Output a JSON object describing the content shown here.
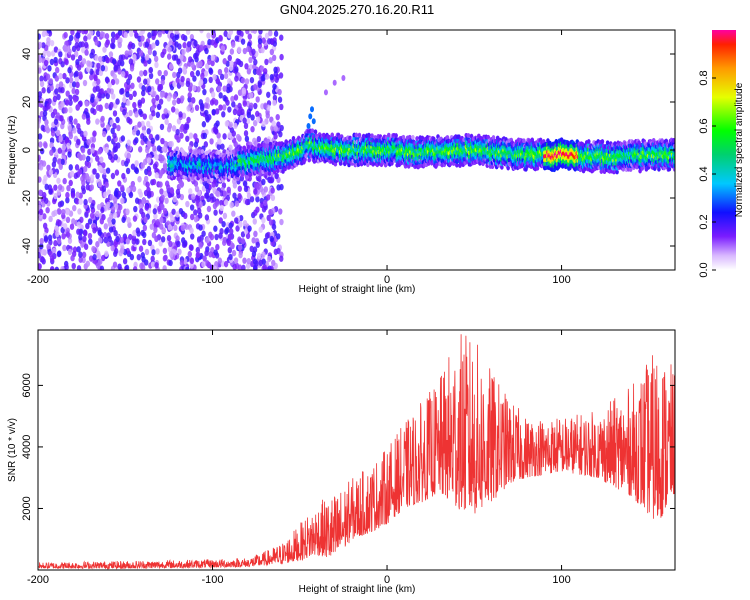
{
  "figure": {
    "title": "GN04.2025.270.16.20.R11"
  },
  "chart_data": [
    {
      "type": "heatmap",
      "title": "",
      "xlabel": "Height of straight line (km)",
      "ylabel": "Frequency (Hz)",
      "xlim": [
        -200,
        165
      ],
      "ylim": [
        -50,
        50
      ],
      "xticks": [
        -200,
        -100,
        0,
        100
      ],
      "yticks": [
        -40,
        -20,
        0,
        20,
        40
      ],
      "colorbar": {
        "label": "Normalized spectral amplitude",
        "range": [
          0.0,
          1.0
        ],
        "ticks": [
          0.0,
          0.2,
          0.4,
          0.6,
          0.8
        ]
      },
      "description_points": {
        "ridge_frequency_hz": [
          {
            "x": -115,
            "y": -6
          },
          {
            "x": -95,
            "y": -7
          },
          {
            "x": -80,
            "y": -5
          },
          {
            "x": -60,
            "y": -3
          },
          {
            "x": -45,
            "y": 2
          },
          {
            "x": -30,
            "y": 0
          },
          {
            "x": 0,
            "y": 0
          },
          {
            "x": 20,
            "y": -1
          },
          {
            "x": 50,
            "y": 0
          },
          {
            "x": 80,
            "y": -2
          },
          {
            "x": 100,
            "y": -2
          },
          {
            "x": 130,
            "y": -3
          },
          {
            "x": 160,
            "y": -2
          }
        ],
        "max_amplitude_x_range_km": [
          90,
          110
        ],
        "noise_region_x_range_km": [
          -200,
          -75
        ]
      }
    },
    {
      "type": "line",
      "title": "",
      "xlabel": "Height of straight line (km)",
      "ylabel": "SNR (10 * v/v)",
      "xlim": [
        -200,
        165
      ],
      "ylim": [
        0,
        7800
      ],
      "xticks": [
        -200,
        -100,
        0,
        100
      ],
      "yticks": [
        2000,
        4000,
        6000
      ],
      "color": "#ee3333",
      "envelope": [
        {
          "x": -200,
          "low": 50,
          "high": 250
        },
        {
          "x": -150,
          "low": 50,
          "high": 300
        },
        {
          "x": -100,
          "low": 80,
          "high": 350
        },
        {
          "x": -80,
          "low": 100,
          "high": 400
        },
        {
          "x": -70,
          "low": 150,
          "high": 600
        },
        {
          "x": -60,
          "low": 200,
          "high": 900
        },
        {
          "x": -50,
          "low": 300,
          "high": 1500
        },
        {
          "x": -40,
          "low": 500,
          "high": 2200
        },
        {
          "x": -30,
          "low": 300,
          "high": 2500
        },
        {
          "x": -20,
          "low": 1000,
          "high": 3000
        },
        {
          "x": -10,
          "low": 1200,
          "high": 3400
        },
        {
          "x": 0,
          "low": 1500,
          "high": 4000
        },
        {
          "x": 10,
          "low": 2000,
          "high": 4800
        },
        {
          "x": 20,
          "low": 2200,
          "high": 5500
        },
        {
          "x": 30,
          "low": 2500,
          "high": 6200
        },
        {
          "x": 40,
          "low": 2000,
          "high": 7800
        },
        {
          "x": 50,
          "low": 1800,
          "high": 7600
        },
        {
          "x": 60,
          "low": 2200,
          "high": 6500
        },
        {
          "x": 70,
          "low": 2800,
          "high": 5600
        },
        {
          "x": 80,
          "low": 3000,
          "high": 5000
        },
        {
          "x": 100,
          "low": 3200,
          "high": 5000
        },
        {
          "x": 120,
          "low": 3000,
          "high": 5200
        },
        {
          "x": 140,
          "low": 2400,
          "high": 6000
        },
        {
          "x": 155,
          "low": 1500,
          "high": 7300
        },
        {
          "x": 165,
          "low": 2500,
          "high": 6500
        }
      ]
    }
  ]
}
